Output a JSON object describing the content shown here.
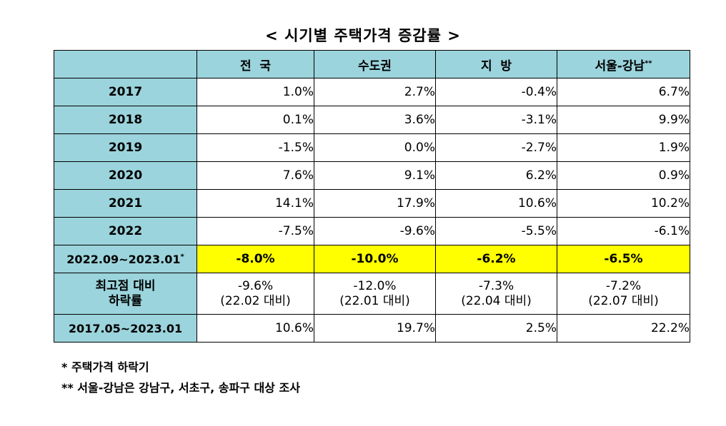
{
  "title": "< 시기별 주택가격 증감률 >",
  "header": {
    "blank": "",
    "col1": "전  국",
    "col2": "수도권",
    "col3": "지  방",
    "col4": "서울-강남",
    "col4_mark": "**"
  },
  "rows": [
    {
      "label": "2017",
      "values": [
        "1.0%",
        "2.7%",
        "-0.4%",
        "6.7%"
      ]
    },
    {
      "label": "2018",
      "values": [
        "0.1%",
        "3.6%",
        "-3.1%",
        "9.9%"
      ]
    },
    {
      "label": "2019",
      "values": [
        "-1.5%",
        "0.0%",
        "-2.7%",
        "1.9%"
      ]
    },
    {
      "label": "2020",
      "values": [
        "7.6%",
        "9.1%",
        "6.2%",
        "0.9%"
      ]
    },
    {
      "label": "2021",
      "values": [
        "14.1%",
        "17.9%",
        "10.6%",
        "10.2%"
      ]
    },
    {
      "label": "2022",
      "values": [
        "-7.5%",
        "-9.6%",
        "-5.5%",
        "-6.1%"
      ]
    }
  ],
  "highlight_row": {
    "label": "2022.09~2023.01",
    "label_mark": "*",
    "values": [
      "-8.0%",
      "-10.0%",
      "-6.2%",
      "-6.5%"
    ],
    "color": "#ffff00"
  },
  "peak_row": {
    "label_line1": "최고점 대비",
    "label_line2": "하락률",
    "values": [
      {
        "pct": "-9.6%",
        "ref": "(22.02 대비)"
      },
      {
        "pct": "-12.0%",
        "ref": "(22.01 대비)"
      },
      {
        "pct": "-7.3%",
        "ref": "(22.04 대비)"
      },
      {
        "pct": "-7.2%",
        "ref": "(22.07 대비)"
      }
    ]
  },
  "cumulative_row": {
    "label": "2017.05~2023.01",
    "values": [
      "10.6%",
      "19.7%",
      "2.5%",
      "22.2%"
    ]
  },
  "notes": {
    "note1": "* 주택가격 하락기",
    "note2": "** 서울-강남은 강남구, 서초구, 송파구 대상 조사"
  },
  "colors": {
    "header_bg": "#9bd4dc",
    "highlight_bg": "#ffff00"
  }
}
